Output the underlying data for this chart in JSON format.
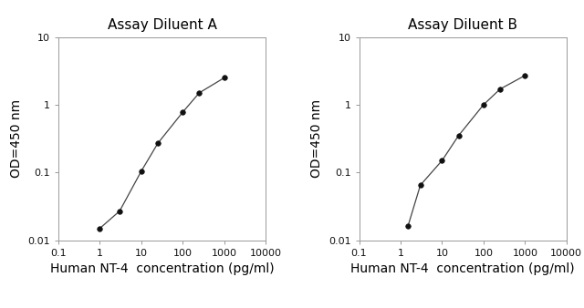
{
  "panel_A": {
    "title": "Assay Diluent A",
    "x": [
      1.0,
      3.0,
      10.0,
      25.0,
      100.0,
      250.0,
      1000.0
    ],
    "y": [
      0.015,
      0.027,
      0.105,
      0.27,
      0.78,
      1.5,
      2.5
    ],
    "xlabel": "Human NT-4  concentration (pg/ml)",
    "ylabel": "OD=450 nm",
    "xlim": [
      0.1,
      10000
    ],
    "ylim": [
      0.01,
      10
    ]
  },
  "panel_B": {
    "title": "Assay Diluent B",
    "x": [
      1.5,
      3.0,
      10.0,
      25.0,
      100.0,
      250.0,
      1000.0
    ],
    "y": [
      0.016,
      0.065,
      0.15,
      0.35,
      1.0,
      1.7,
      2.7
    ],
    "xlabel": "Human NT-4  concentration (pg/ml)",
    "ylabel": "OD=450 nm",
    "xlim": [
      0.1,
      10000
    ],
    "ylim": [
      0.01,
      10
    ]
  },
  "line_color": "#444444",
  "marker": "o",
  "marker_color": "#111111",
  "marker_size": 4,
  "bg_color": "#ffffff",
  "title_fontsize": 11,
  "label_fontsize": 10,
  "tick_fontsize": 8,
  "spine_color": "#999999",
  "xtick_labels": [
    "0.1",
    "1",
    "10",
    "100",
    "1000",
    "10000"
  ],
  "xtick_vals": [
    0.1,
    1,
    10,
    100,
    1000,
    10000
  ],
  "ytick_labels": [
    "0.01",
    "0.1",
    "1",
    "10"
  ],
  "ytick_vals": [
    0.01,
    0.1,
    1,
    10
  ]
}
